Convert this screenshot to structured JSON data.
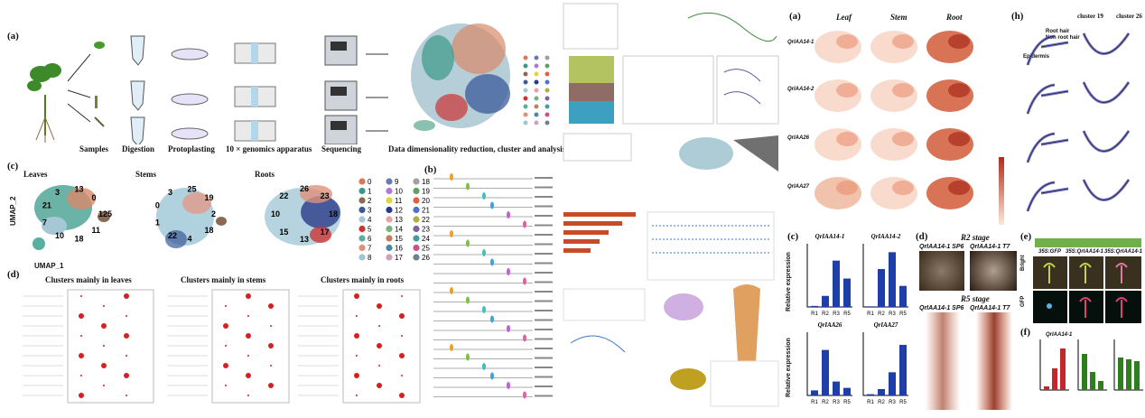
{
  "left": {
    "panel_a": {
      "letter": "(a)",
      "steps": [
        "Samples",
        "Digestion",
        "Protoplasting",
        "10 × genomics apparatus",
        "Sequencing",
        "Data dimensionality reduction, cluster and analysis"
      ],
      "umap_x": "UMAP_1",
      "umap_y": "UMAP_2"
    },
    "panel_c": {
      "letter": "(c)",
      "titles": [
        "Leaves",
        "Stems",
        "Roots"
      ],
      "xlabel": "UMAP_1",
      "ylabel": "UMAP_2",
      "legend": [
        "0",
        "1",
        "2",
        "3",
        "4",
        "5",
        "6",
        "7",
        "8",
        "9",
        "10",
        "11",
        "12",
        "13",
        "14",
        "15",
        "16",
        "17",
        "18",
        "19",
        "20",
        "21",
        "22",
        "23",
        "24",
        "25",
        "26"
      ],
      "labels_leaves": [
        "125",
        "11",
        "18",
        "10",
        "7",
        "21",
        "3",
        "13",
        "0"
      ],
      "labels_stems": [
        "2",
        "18",
        "4",
        "22",
        "1",
        "0",
        "3",
        "25",
        "19"
      ],
      "labels_roots": [
        "18",
        "17",
        "13",
        "15",
        "10",
        "22",
        "26",
        "23"
      ]
    },
    "panel_d": {
      "letter": "(d)",
      "titles": [
        "Clusters mainly in leaves",
        "Clusters mainly in stems",
        "Clusters mainly in roots"
      ]
    },
    "panel_b": {
      "letter": "(b)"
    }
  },
  "right": {
    "panel_a": {
      "letter": "(a)",
      "cols": [
        "Leaf",
        "Stem",
        "Root"
      ],
      "rows": [
        "QrIAA14-1",
        "QrIAA14-2",
        "QrIAA26",
        "QrIAA27"
      ]
    },
    "panel_h": {
      "letter": "(h)",
      "head": [
        "cluster 19",
        "cluster 26"
      ],
      "traj_labels": [
        "Root hair",
        "Non root hair",
        "Epidermis"
      ]
    },
    "panel_c": {
      "letter": "(c)",
      "charts": [
        {
          "title": "QrIAA14-1",
          "categories": [
            "R1",
            "R2",
            "R3",
            "R5"
          ]
        },
        {
          "title": "QrIAA14-2",
          "categories": [
            "R1",
            "R2",
            "R3",
            "R5"
          ]
        },
        {
          "title": "QrIAA26",
          "categories": [
            "R1",
            "R2",
            "R3",
            "R5"
          ]
        },
        {
          "title": "QrIAA27",
          "categories": [
            "R1",
            "R2",
            "R3",
            "R5"
          ]
        }
      ],
      "ylabel": "Relative expression"
    },
    "panel_d": {
      "letter": "(d)",
      "r2": "R2 stage",
      "r5": "R5 stage",
      "labels": [
        "QrIAA14-1 SP6",
        "QrIAA14-1 T7",
        "QrIAA14-1 SP6",
        "QrIAA14-1 T7"
      ]
    },
    "panel_e": {
      "letter": "(e)",
      "rows": [
        "Bright",
        "GFP"
      ],
      "cols": [
        "35S:GFP",
        "35S:QrIAA14-1",
        "35S:QrIAA14-1"
      ]
    },
    "panel_f": {
      "letter": "(f)",
      "first_title": "QrIAA14-1"
    }
  },
  "chart_data": [
    {
      "type": "bar",
      "title": "QrIAA14-1",
      "categories": [
        "R1",
        "R2",
        "R3",
        "R5"
      ],
      "values": [
        0.2,
        2.1,
        8.8,
        5.4
      ],
      "ylim": [
        0,
        12
      ]
    },
    {
      "type": "bar",
      "title": "QrIAA14-2",
      "categories": [
        "R1",
        "R2",
        "R3",
        "R5"
      ],
      "values": [
        0.3,
        18,
        26,
        10
      ],
      "ylim": [
        0,
        30
      ]
    },
    {
      "type": "bar",
      "title": "QrIAA26",
      "categories": [
        "R1",
        "R2",
        "R3",
        "R5"
      ],
      "values": [
        0.8,
        7.2,
        2.2,
        1.2
      ],
      "ylim": [
        0,
        10
      ]
    },
    {
      "type": "bar",
      "title": "QrIAA27",
      "categories": [
        "R1",
        "R2",
        "R3",
        "R5"
      ],
      "values": [
        0.3,
        1.5,
        5.5,
        12
      ],
      "ylim": [
        0,
        15
      ]
    }
  ],
  "colors": {
    "bar": "#1f3fa8",
    "green": "#2e7d1e",
    "red": "#c0282e"
  }
}
